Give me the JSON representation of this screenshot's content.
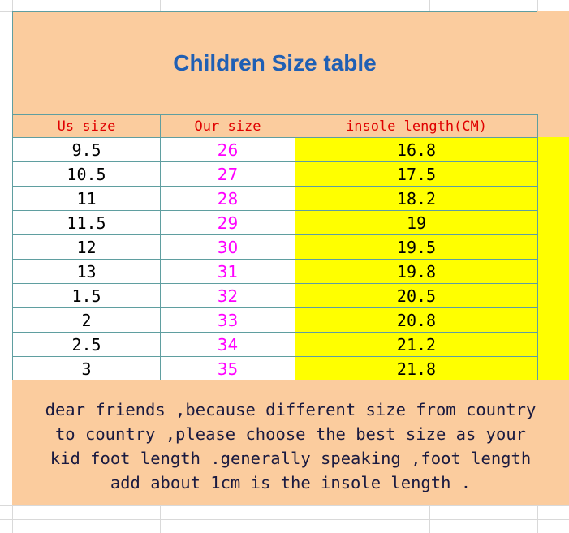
{
  "table": {
    "title": "Children Size table",
    "headers": [
      "Us size",
      "Our size",
      "insole length(CM)"
    ],
    "rows": [
      [
        "9.5",
        "26",
        "16.8"
      ],
      [
        "10.5",
        "27",
        "17.5"
      ],
      [
        "11",
        "28",
        "18.2"
      ],
      [
        "11.5",
        "29",
        "19"
      ],
      [
        "12",
        "30",
        "19.5"
      ],
      [
        "13",
        "31",
        "19.8"
      ],
      [
        "1.5",
        "32",
        "20.5"
      ],
      [
        "2",
        "33",
        "20.8"
      ],
      [
        "2.5",
        "34",
        "21.2"
      ],
      [
        "3",
        "35",
        "21.8"
      ]
    ],
    "note": [
      "dear friends ,because different size from country",
      "to country ,please choose the best size as your",
      "kid foot length .generally speaking ,foot length",
      "add about 1cm is the insole length ."
    ]
  }
}
